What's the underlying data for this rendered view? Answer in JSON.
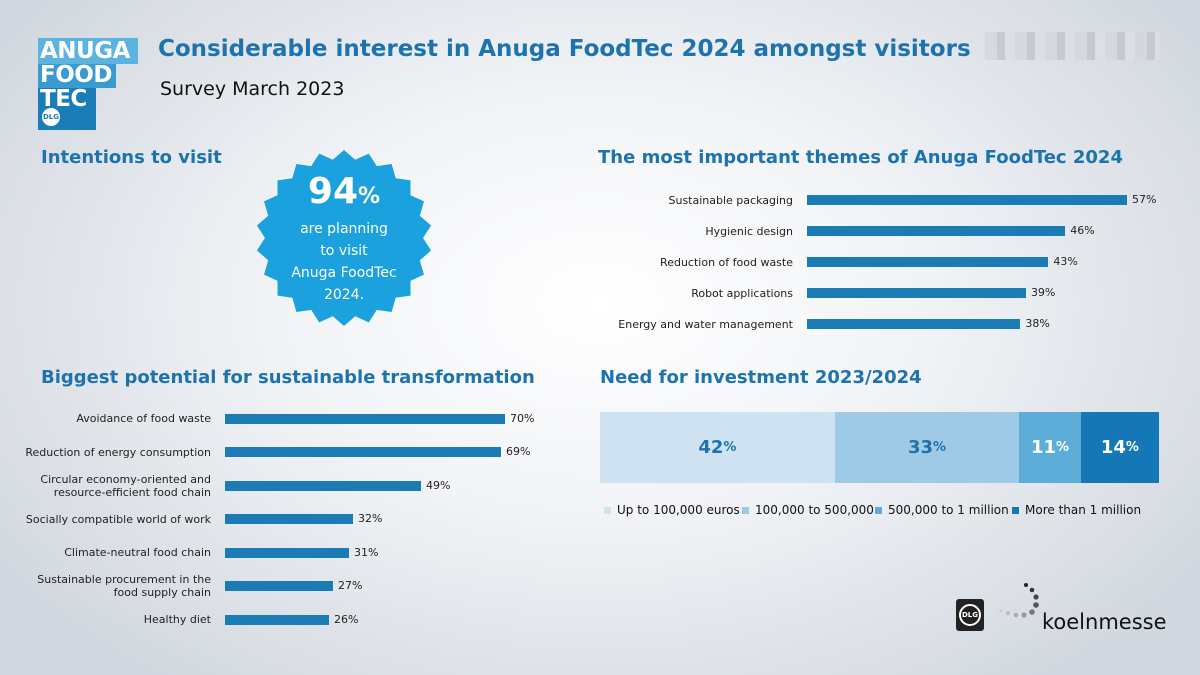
{
  "header": {
    "title": "Considerable interest in Anuga FoodTec 2024 amongst visitors",
    "subtitle": "Survey March 2023",
    "logo_lines": [
      "ANUGA",
      "FOOD",
      "TEC"
    ],
    "logo_badge": "DLG"
  },
  "intentions": {
    "heading": "Intentions to visit",
    "big_number": "94",
    "big_unit": "%",
    "lines": [
      "are planning",
      "to visit",
      "Anuga FoodTec",
      "2024."
    ]
  },
  "colors": {
    "title_blue": "#1d73ad",
    "bar_blue": "#1b7bb5",
    "burst_blue": "#1ba1dd",
    "seg1": "#cfe2f1",
    "seg2": "#9fcae6",
    "seg3": "#5caed8",
    "seg4": "#1577b5"
  },
  "chart_data": [
    {
      "id": "themes",
      "type": "bar",
      "orientation": "horizontal",
      "title": "The most important themes of Anuga FoodTec 2024",
      "categories": [
        "Sustainable packaging",
        "Hygienic design",
        "Reduction of food waste",
        "Robot applications",
        "Energy and water management"
      ],
      "values": [
        57,
        46,
        43,
        39,
        38
      ],
      "unit": "%"
    },
    {
      "id": "potential",
      "type": "bar",
      "orientation": "horizontal",
      "title": "Biggest potential for sustainable transformation",
      "categories": [
        "Avoidance of food waste",
        "Reduction of energy consumption",
        "Circular economy-oriented and resource-efficient food chain",
        "Socially compatible world of work",
        "Climate-neutral food chain",
        "Sustainable procurement in the food supply chain",
        "Healthy diet"
      ],
      "category_lines": [
        [
          "Avoidance of food waste"
        ],
        [
          "Reduction of energy consumption"
        ],
        [
          "Circular economy-oriented and",
          "resource-efficient food chain"
        ],
        [
          "Socially compatible world of work"
        ],
        [
          "Climate-neutral food chain"
        ],
        [
          "Sustainable procurement in the",
          "food supply chain"
        ],
        [
          "Healthy diet"
        ]
      ],
      "values": [
        70,
        69,
        49,
        32,
        31,
        27,
        26
      ],
      "unit": "%"
    },
    {
      "id": "investment",
      "type": "bar",
      "stacked": true,
      "title": "Need for investment 2023/2024",
      "series": [
        {
          "name": "Up to 100,000 euros",
          "values": [
            42
          ]
        },
        {
          "name": "100,000 to 500,000",
          "values": [
            33
          ]
        },
        {
          "name": "500,000 to 1 million",
          "values": [
            11
          ]
        },
        {
          "name": "More than 1 million",
          "values": [
            14
          ]
        }
      ],
      "unit": "%",
      "legend": "bottom"
    }
  ],
  "footer": {
    "dlg_badge": "DLG",
    "brand": "koelnmesse"
  }
}
